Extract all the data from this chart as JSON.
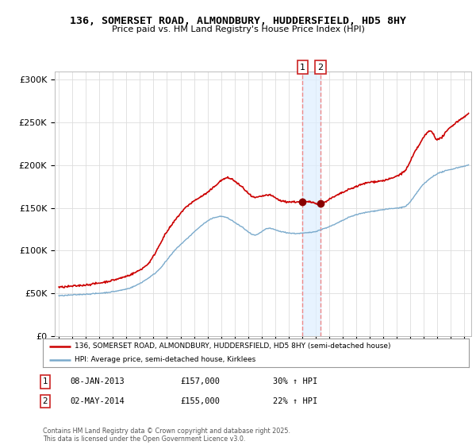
{
  "title": "136, SOMERSET ROAD, ALMONDBURY, HUDDERSFIELD, HD5 8HY",
  "subtitle": "Price paid vs. HM Land Registry's House Price Index (HPI)",
  "legend_line1": "136, SOMERSET ROAD, ALMONDBURY, HUDDERSFIELD, HD5 8HY (semi-detached house)",
  "legend_line2": "HPI: Average price, semi-detached house, Kirklees",
  "transaction1_label": "1",
  "transaction1_date": "08-JAN-2013",
  "transaction1_price": "£157,000",
  "transaction1_hpi": "30% ↑ HPI",
  "transaction2_label": "2",
  "transaction2_date": "02-MAY-2014",
  "transaction2_price": "£155,000",
  "transaction2_hpi": "22% ↑ HPI",
  "footer": "Contains HM Land Registry data © Crown copyright and database right 2025.\nThis data is licensed under the Open Government Licence v3.0.",
  "property_color": "#cc0000",
  "hpi_color": "#7aaacc",
  "marker1_color": "#880000",
  "marker2_color": "#880000",
  "vline1_color": "#ee8888",
  "vline2_color": "#aaccee",
  "shade_color": "#ddeeff",
  "ylim": [
    0,
    310000
  ],
  "yticks": [
    0,
    50000,
    100000,
    150000,
    200000,
    250000,
    300000
  ],
  "xlim_start": 1994.7,
  "xlim_end": 2025.5,
  "xticks": [
    1995,
    1996,
    1997,
    1998,
    1999,
    2000,
    2001,
    2002,
    2003,
    2004,
    2005,
    2006,
    2007,
    2008,
    2009,
    2010,
    2011,
    2012,
    2013,
    2014,
    2015,
    2016,
    2017,
    2018,
    2019,
    2020,
    2021,
    2022,
    2023,
    2024,
    2025
  ],
  "transaction1_x": 2013.03,
  "transaction2_x": 2014.35,
  "transaction1_y": 157000,
  "transaction2_y": 155000,
  "background_color": "#ffffff",
  "grid_color": "#dddddd"
}
